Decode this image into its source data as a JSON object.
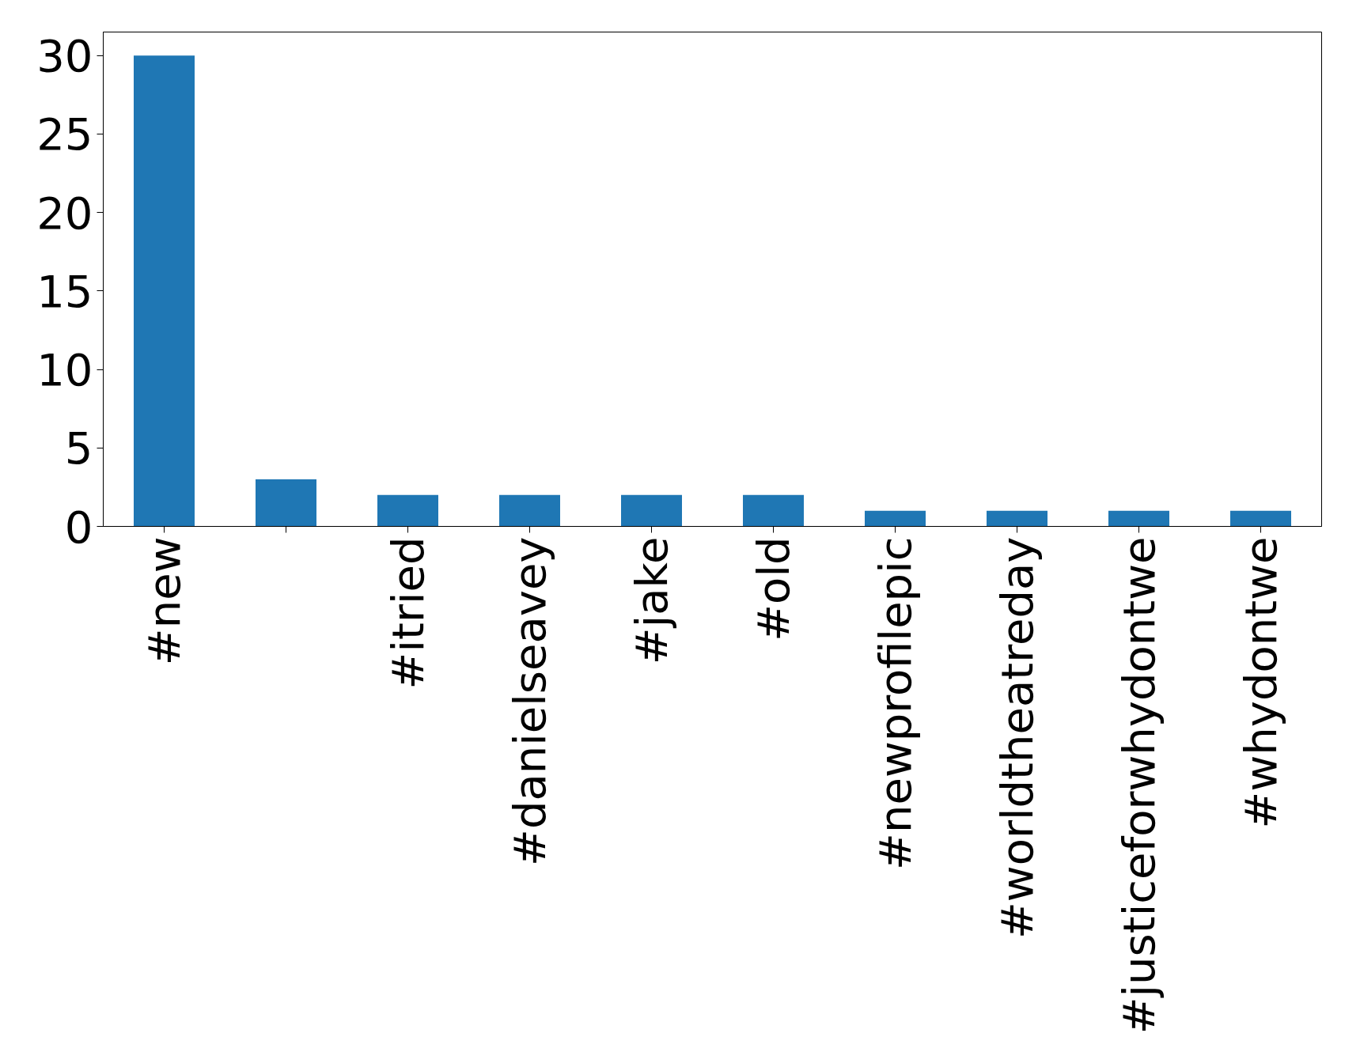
{
  "chart_data": {
    "type": "bar",
    "categories": [
      "#new",
      null,
      "#itried",
      "#danielseavey",
      "#jake",
      "#old",
      "#newprofilepic",
      "#worldtheatreday",
      "#justiceforwhydontwe",
      "#whydontwe"
    ],
    "values": [
      30,
      3,
      2,
      2,
      2,
      2,
      1,
      1,
      1,
      1
    ],
    "color": "#1f77b4",
    "ylim": [
      0,
      31.5
    ],
    "yticks": [
      0,
      5,
      10,
      15,
      20,
      25,
      30
    ],
    "grid": false
  }
}
